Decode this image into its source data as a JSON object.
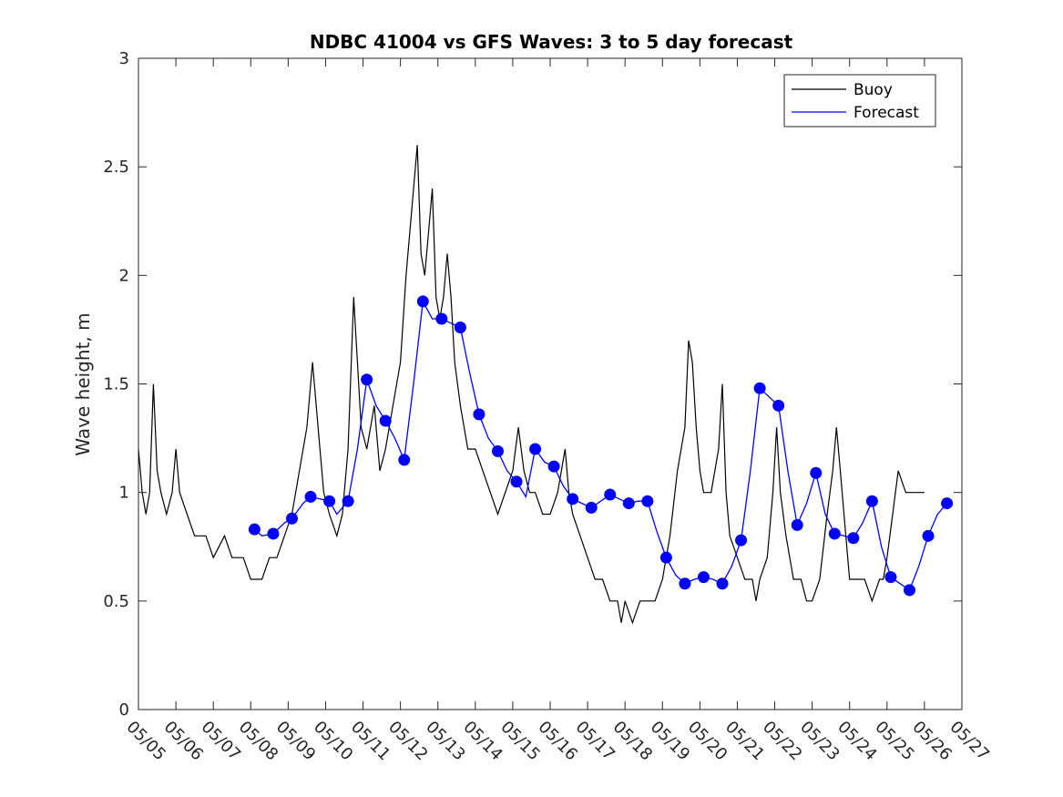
{
  "chart_data": {
    "type": "line",
    "title": "NDBC 41004 vs GFS Waves: 3 to 5 day forecast",
    "xlabel": "",
    "ylabel": "Wave height, m",
    "xlim": [
      0,
      22
    ],
    "ylim": [
      0,
      3
    ],
    "grid": false,
    "legend_position": "top-right",
    "x_ticks": [
      "05/05",
      "05/06",
      "05/07",
      "05/08",
      "05/09",
      "05/10",
      "05/11",
      "05/12",
      "05/13",
      "05/14",
      "05/15",
      "05/16",
      "05/17",
      "05/18",
      "05/19",
      "05/20",
      "05/21",
      "05/22",
      "05/23",
      "05/24",
      "05/25",
      "05/26",
      "05/27"
    ],
    "y_ticks": [
      "0",
      "0.5",
      "1",
      "1.5",
      "2",
      "2.5",
      "3"
    ],
    "legend": [
      {
        "name": "Buoy",
        "color": "#000000"
      },
      {
        "name": "Forecast",
        "color": "#0000ff"
      }
    ],
    "x_unit_note_days_after": "05/05",
    "series": [
      {
        "name": "Buoy",
        "color": "#000000",
        "points": [
          [
            0.0,
            1.2
          ],
          [
            0.1,
            1.0
          ],
          [
            0.2,
            0.9
          ],
          [
            0.3,
            1.0
          ],
          [
            0.4,
            1.5
          ],
          [
            0.5,
            1.1
          ],
          [
            0.6,
            1.0
          ],
          [
            0.75,
            0.9
          ],
          [
            0.9,
            1.0
          ],
          [
            1.0,
            1.2
          ],
          [
            1.1,
            1.0
          ],
          [
            1.3,
            0.9
          ],
          [
            1.5,
            0.8
          ],
          [
            1.8,
            0.8
          ],
          [
            2.0,
            0.7
          ],
          [
            2.3,
            0.8
          ],
          [
            2.5,
            0.7
          ],
          [
            2.8,
            0.7
          ],
          [
            3.0,
            0.6
          ],
          [
            3.3,
            0.6
          ],
          [
            3.5,
            0.7
          ],
          [
            3.7,
            0.7
          ],
          [
            3.9,
            0.8
          ],
          [
            4.1,
            0.9
          ],
          [
            4.3,
            1.1
          ],
          [
            4.5,
            1.3
          ],
          [
            4.65,
            1.6
          ],
          [
            4.8,
            1.3
          ],
          [
            4.95,
            1.0
          ],
          [
            5.1,
            0.9
          ],
          [
            5.3,
            0.8
          ],
          [
            5.45,
            0.9
          ],
          [
            5.6,
            1.2
          ],
          [
            5.75,
            1.9
          ],
          [
            5.85,
            1.6
          ],
          [
            5.95,
            1.3
          ],
          [
            6.1,
            1.2
          ],
          [
            6.3,
            1.4
          ],
          [
            6.45,
            1.1
          ],
          [
            6.6,
            1.2
          ],
          [
            6.8,
            1.4
          ],
          [
            7.0,
            1.6
          ],
          [
            7.15,
            2.0
          ],
          [
            7.3,
            2.3
          ],
          [
            7.45,
            2.6
          ],
          [
            7.55,
            2.1
          ],
          [
            7.65,
            2.0
          ],
          [
            7.75,
            2.2
          ],
          [
            7.85,
            2.4
          ],
          [
            7.95,
            1.9
          ],
          [
            8.05,
            1.8
          ],
          [
            8.15,
            1.9
          ],
          [
            8.25,
            2.1
          ],
          [
            8.35,
            1.9
          ],
          [
            8.45,
            1.6
          ],
          [
            8.6,
            1.4
          ],
          [
            8.8,
            1.2
          ],
          [
            9.0,
            1.2
          ],
          [
            9.2,
            1.1
          ],
          [
            9.4,
            1.0
          ],
          [
            9.6,
            0.9
          ],
          [
            9.8,
            1.0
          ],
          [
            10.0,
            1.1
          ],
          [
            10.15,
            1.3
          ],
          [
            10.3,
            1.1
          ],
          [
            10.45,
            1.0
          ],
          [
            10.6,
            1.0
          ],
          [
            10.8,
            0.9
          ],
          [
            11.0,
            0.9
          ],
          [
            11.2,
            1.0
          ],
          [
            11.4,
            1.2
          ],
          [
            11.5,
            1.0
          ],
          [
            11.6,
            0.9
          ],
          [
            11.8,
            0.8
          ],
          [
            12.0,
            0.7
          ],
          [
            12.2,
            0.6
          ],
          [
            12.4,
            0.6
          ],
          [
            12.6,
            0.5
          ],
          [
            12.8,
            0.5
          ],
          [
            12.9,
            0.4
          ],
          [
            13.0,
            0.5
          ],
          [
            13.2,
            0.4
          ],
          [
            13.4,
            0.5
          ],
          [
            13.6,
            0.5
          ],
          [
            13.8,
            0.5
          ],
          [
            14.0,
            0.6
          ],
          [
            14.2,
            0.8
          ],
          [
            14.4,
            1.1
          ],
          [
            14.6,
            1.3
          ],
          [
            14.7,
            1.7
          ],
          [
            14.8,
            1.6
          ],
          [
            14.9,
            1.3
          ],
          [
            15.0,
            1.1
          ],
          [
            15.1,
            1.0
          ],
          [
            15.3,
            1.0
          ],
          [
            15.5,
            1.2
          ],
          [
            15.6,
            1.5
          ],
          [
            15.7,
            1.0
          ],
          [
            15.8,
            0.8
          ],
          [
            16.0,
            0.7
          ],
          [
            16.2,
            0.6
          ],
          [
            16.4,
            0.6
          ],
          [
            16.5,
            0.5
          ],
          [
            16.6,
            0.6
          ],
          [
            16.8,
            0.7
          ],
          [
            16.95,
            1.0
          ],
          [
            17.05,
            1.3
          ],
          [
            17.15,
            1.0
          ],
          [
            17.3,
            0.8
          ],
          [
            17.5,
            0.6
          ],
          [
            17.7,
            0.6
          ],
          [
            17.85,
            0.5
          ],
          [
            18.0,
            0.5
          ],
          [
            18.2,
            0.6
          ],
          [
            18.4,
            0.9
          ],
          [
            18.55,
            1.1
          ],
          [
            18.65,
            1.3
          ],
          [
            18.75,
            1.1
          ],
          [
            18.9,
            0.8
          ],
          [
            19.0,
            0.6
          ],
          [
            19.2,
            0.6
          ],
          [
            19.4,
            0.6
          ],
          [
            19.6,
            0.5
          ],
          [
            19.8,
            0.6
          ],
          [
            19.9,
            0.6
          ],
          [
            20.0,
            0.7
          ],
          [
            20.15,
            0.9
          ],
          [
            20.3,
            1.1
          ],
          [
            20.5,
            1.0
          ],
          [
            20.7,
            1.0
          ],
          [
            20.85,
            1.0
          ],
          [
            21.0,
            1.0
          ]
        ]
      },
      {
        "name": "Forecast",
        "color": "#0000ff",
        "points": [
          [
            3.1,
            0.83
          ],
          [
            3.3,
            0.8
          ],
          [
            3.6,
            0.81
          ],
          [
            3.9,
            0.86
          ],
          [
            4.1,
            0.88
          ],
          [
            4.4,
            0.95
          ],
          [
            4.6,
            0.98
          ],
          [
            4.85,
            0.97
          ],
          [
            5.1,
            0.96
          ],
          [
            5.3,
            0.9
          ],
          [
            5.6,
            0.96
          ],
          [
            5.85,
            1.2
          ],
          [
            6.1,
            1.52
          ],
          [
            6.35,
            1.4
          ],
          [
            6.6,
            1.33
          ],
          [
            6.85,
            1.25
          ],
          [
            7.1,
            1.15
          ],
          [
            7.35,
            1.5
          ],
          [
            7.6,
            1.88
          ],
          [
            7.85,
            1.8
          ],
          [
            8.1,
            1.8
          ],
          [
            8.35,
            1.78
          ],
          [
            8.6,
            1.76
          ],
          [
            8.85,
            1.55
          ],
          [
            9.1,
            1.36
          ],
          [
            9.35,
            1.25
          ],
          [
            9.6,
            1.19
          ],
          [
            9.85,
            1.1
          ],
          [
            10.1,
            1.05
          ],
          [
            10.35,
            0.98
          ],
          [
            10.6,
            1.2
          ],
          [
            10.85,
            1.14
          ],
          [
            11.1,
            1.12
          ],
          [
            11.35,
            1.03
          ],
          [
            11.6,
            0.97
          ],
          [
            11.85,
            0.95
          ],
          [
            12.1,
            0.93
          ],
          [
            12.35,
            0.96
          ],
          [
            12.6,
            0.99
          ],
          [
            12.85,
            0.97
          ],
          [
            13.1,
            0.95
          ],
          [
            13.35,
            0.96
          ],
          [
            13.6,
            0.96
          ],
          [
            13.85,
            0.82
          ],
          [
            14.1,
            0.7
          ],
          [
            14.35,
            0.62
          ],
          [
            14.6,
            0.58
          ],
          [
            14.85,
            0.6
          ],
          [
            15.1,
            0.61
          ],
          [
            15.35,
            0.6
          ],
          [
            15.6,
            0.58
          ],
          [
            15.85,
            0.66
          ],
          [
            16.1,
            0.78
          ],
          [
            16.35,
            1.1
          ],
          [
            16.6,
            1.48
          ],
          [
            16.85,
            1.44
          ],
          [
            17.1,
            1.4
          ],
          [
            17.35,
            1.1
          ],
          [
            17.6,
            0.85
          ],
          [
            17.85,
            0.95
          ],
          [
            18.1,
            1.09
          ],
          [
            18.35,
            0.9
          ],
          [
            18.6,
            0.81
          ],
          [
            18.85,
            0.8
          ],
          [
            19.1,
            0.79
          ],
          [
            19.35,
            0.86
          ],
          [
            19.6,
            0.96
          ],
          [
            19.85,
            0.75
          ],
          [
            20.1,
            0.61
          ],
          [
            20.35,
            0.58
          ],
          [
            20.6,
            0.55
          ],
          [
            20.85,
            0.66
          ],
          [
            21.1,
            0.8
          ],
          [
            21.35,
            0.9
          ],
          [
            21.6,
            0.95
          ]
        ]
      }
    ],
    "forecast_markers": [
      [
        3.1,
        0.83
      ],
      [
        3.6,
        0.81
      ],
      [
        4.1,
        0.88
      ],
      [
        4.6,
        0.98
      ],
      [
        5.1,
        0.96
      ],
      [
        5.6,
        0.96
      ],
      [
        6.1,
        1.52
      ],
      [
        6.6,
        1.33
      ],
      [
        7.1,
        1.15
      ],
      [
        7.6,
        1.88
      ],
      [
        8.1,
        1.8
      ],
      [
        8.6,
        1.76
      ],
      [
        9.1,
        1.36
      ],
      [
        9.6,
        1.19
      ],
      [
        10.1,
        1.05
      ],
      [
        10.6,
        1.2
      ],
      [
        11.1,
        1.12
      ],
      [
        11.6,
        0.97
      ],
      [
        12.1,
        0.93
      ],
      [
        12.6,
        0.99
      ],
      [
        13.1,
        0.95
      ],
      [
        13.6,
        0.96
      ],
      [
        14.1,
        0.7
      ],
      [
        14.6,
        0.58
      ],
      [
        15.1,
        0.61
      ],
      [
        15.6,
        0.58
      ],
      [
        16.1,
        0.78
      ],
      [
        16.6,
        1.48
      ],
      [
        17.1,
        1.4
      ],
      [
        17.6,
        0.85
      ],
      [
        18.1,
        1.09
      ],
      [
        18.6,
        0.81
      ],
      [
        19.1,
        0.79
      ],
      [
        19.6,
        0.96
      ],
      [
        20.1,
        0.61
      ],
      [
        20.6,
        0.55
      ],
      [
        21.1,
        0.8
      ],
      [
        21.6,
        0.95
      ]
    ]
  }
}
